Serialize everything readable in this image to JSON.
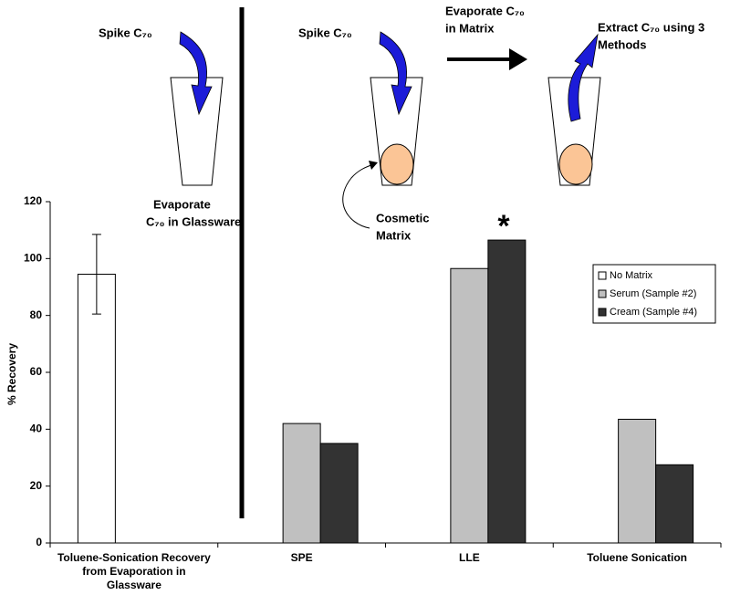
{
  "chart_data": {
    "type": "bar",
    "ylabel": "% Recovery",
    "categories": [
      "Toluene-Sonication Recovery from Evaporation in Glassware",
      "SPE",
      "LLE",
      "Toluene Sonication"
    ],
    "series": [
      {
        "name": "No Matrix",
        "color": "#ffffff",
        "values": [
          94.5,
          null,
          null,
          null
        ],
        "errors": [
          14,
          null,
          null,
          null
        ]
      },
      {
        "name": "Serum (Sample #2)",
        "color": "#c0c0c0",
        "values": [
          null,
          42,
          96.5,
          43.5
        ]
      },
      {
        "name": "Cream (Sample #4)",
        "color": "#333333",
        "values": [
          null,
          35,
          106.5,
          27.5
        ]
      }
    ],
    "ylim": [
      0,
      120
    ],
    "yticks": [
      0,
      20,
      40,
      60,
      80,
      100,
      120
    ],
    "legend": "right",
    "annotations": [
      {
        "lines": [
          "Spike C₇₀"
        ]
      },
      {
        "lines": [
          "Evaporate",
          "C₇₀ in Glassware"
        ]
      },
      {
        "lines": [
          "Spike C₇₀"
        ]
      },
      {
        "lines": [
          "Evaporate C₇₀",
          "in Matrix"
        ]
      },
      {
        "lines": [
          "Extract  C₇₀ using 3",
          "Methods"
        ]
      },
      {
        "lines": [
          "Cosmetic",
          "Matrix"
        ]
      },
      {
        "lines": [
          "*"
        ]
      }
    ]
  }
}
